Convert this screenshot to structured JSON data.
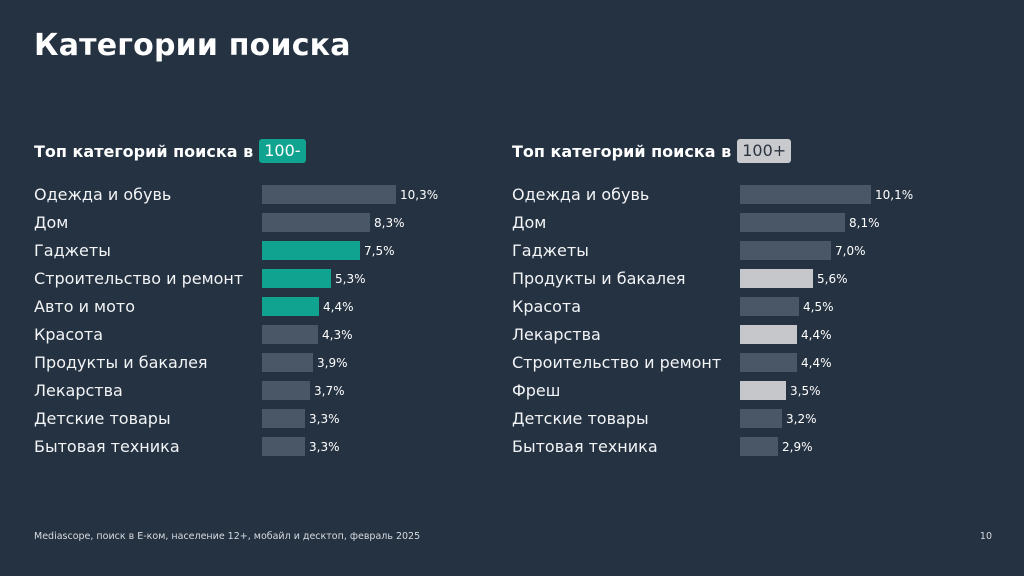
{
  "title": "Категории поиска",
  "footer": "Mediascope, поиск в E-ком, население 12+, мобайл и десктоп, февраль 2025",
  "page_number": "10",
  "colors": {
    "background": "#253242",
    "bar_default": "#4a5767",
    "highlight_teal": "#10a38f",
    "highlight_light": "#c6c7ca"
  },
  "chart_data": [
    {
      "type": "bar",
      "orientation": "horizontal",
      "title_prefix": "Топ категорий поиска в",
      "title_tag": "100-",
      "unit": "%",
      "categories": [
        "Одежда и обувь",
        "Дом",
        "Гаджеты",
        "Строительство и ремонт",
        "Авто и мото",
        "Красота",
        "Продукты и бакалея",
        "Лекарства",
        "Детские товары",
        "Бытовая техника"
      ],
      "values": [
        10.3,
        8.3,
        7.5,
        5.3,
        4.4,
        4.3,
        3.9,
        3.7,
        3.3,
        3.3
      ],
      "value_labels": [
        "10,3%",
        "8,3%",
        "7,5%",
        "5,3%",
        "4,4%",
        "4,3%",
        "3,9%",
        "3,7%",
        "3,3%",
        "3,3%"
      ],
      "highlighted": [
        false,
        false,
        true,
        true,
        true,
        false,
        false,
        false,
        false,
        false
      ],
      "highlight_color": "#10a38f"
    },
    {
      "type": "bar",
      "orientation": "horizontal",
      "title_prefix": "Топ категорий поиска в",
      "title_tag": "100+",
      "unit": "%",
      "categories": [
        "Одежда и обувь",
        "Дом",
        "Гаджеты",
        "Продукты и бакалея",
        "Красота",
        "Лекарства",
        "Строительство и ремонт",
        "Фреш",
        "Детские товары",
        "Бытовая техника"
      ],
      "values": [
        10.1,
        8.1,
        7.0,
        5.6,
        4.5,
        4.4,
        4.4,
        3.5,
        3.2,
        2.9
      ],
      "value_labels": [
        "10,1%",
        "8,1%",
        "7,0%",
        "5,6%",
        "4,5%",
        "4,4%",
        "4,4%",
        "3,5%",
        "3,2%",
        "2,9%"
      ],
      "highlighted": [
        false,
        false,
        false,
        true,
        false,
        true,
        false,
        true,
        false,
        false
      ],
      "highlight_color": "#c6c7ca"
    }
  ]
}
